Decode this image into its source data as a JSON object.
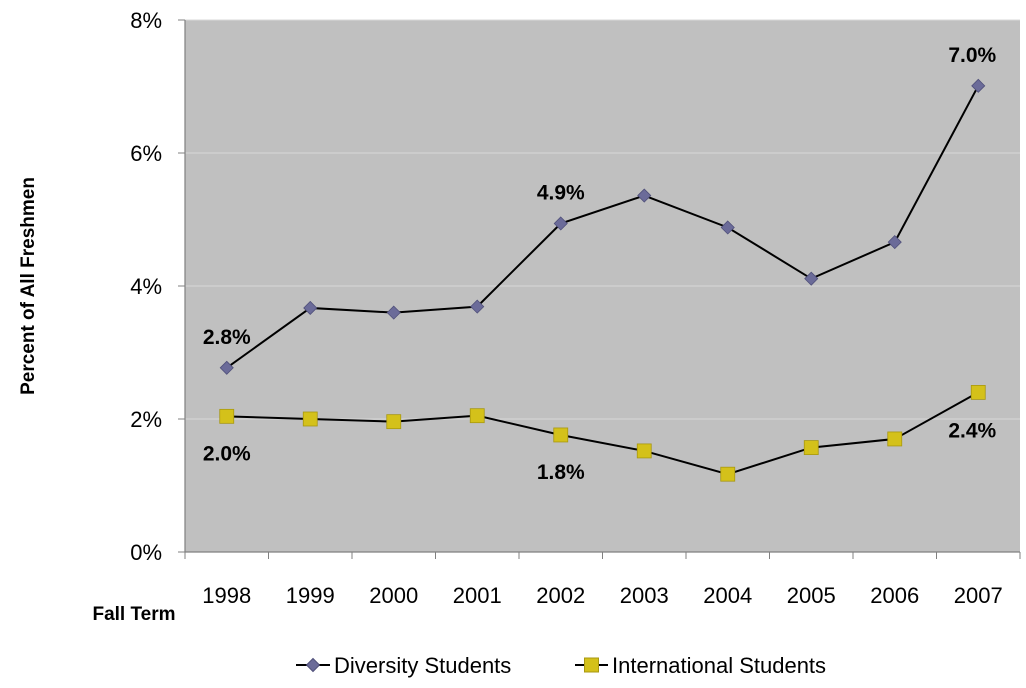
{
  "chart_data": {
    "type": "line",
    "title": "",
    "xlabel": "Fall Term",
    "ylabel": "Percent of All Freshmen",
    "categories": [
      "1998",
      "1999",
      "2000",
      "2001",
      "2002",
      "2003",
      "2004",
      "2005",
      "2006",
      "2007"
    ],
    "ylim": [
      0,
      8
    ],
    "y_ticks": [
      "0%",
      "2%",
      "4%",
      "6%",
      "8%"
    ],
    "y_tick_values": [
      0,
      2,
      4,
      6,
      8
    ],
    "grid": true,
    "legend_position": "bottom",
    "plot_background": "#c0c0c0",
    "series": [
      {
        "name": "Diversity Students",
        "values": [
          2.77,
          3.67,
          3.6,
          3.69,
          4.94,
          5.36,
          4.88,
          4.11,
          4.66,
          7.01
        ],
        "color": "#6b6b99",
        "marker": "diamond",
        "data_labels": [
          {
            "index": 0,
            "text": "2.8%"
          },
          {
            "index": 4,
            "text": "4.9%"
          },
          {
            "index": 9,
            "text": "7.0%"
          }
        ]
      },
      {
        "name": "International Students",
        "values": [
          2.04,
          2.0,
          1.96,
          2.05,
          1.76,
          1.52,
          1.17,
          1.57,
          1.7,
          2.4
        ],
        "color": "#d4c11a",
        "marker": "square",
        "data_labels": [
          {
            "index": 0,
            "text": "2.0%"
          },
          {
            "index": 4,
            "text": "1.8%"
          },
          {
            "index": 9,
            "text": "2.4%"
          }
        ]
      }
    ]
  }
}
